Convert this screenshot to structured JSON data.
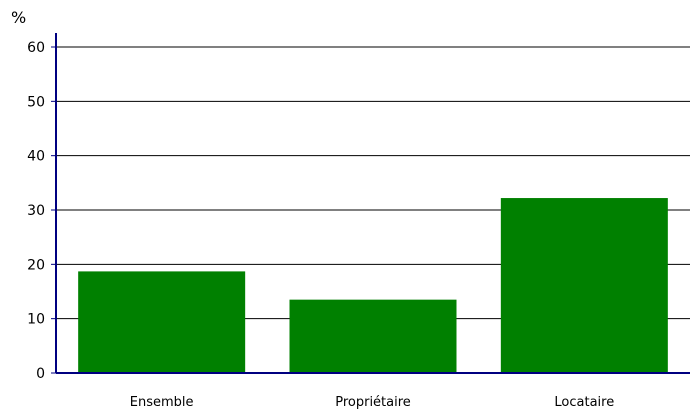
{
  "chart_data": {
    "type": "bar",
    "title": "",
    "xlabel": "",
    "ylabel": "%",
    "categories": [
      "Ensemble",
      "Propriétaire",
      "Locataire"
    ],
    "values": [
      18.7,
      13.5,
      32.2
    ],
    "ylim": [
      0,
      60
    ],
    "yticks": [
      0,
      10,
      20,
      30,
      40,
      50,
      60
    ],
    "grid": true,
    "legend": "none",
    "bar_color": "#008000",
    "axis_color": "#000080"
  }
}
